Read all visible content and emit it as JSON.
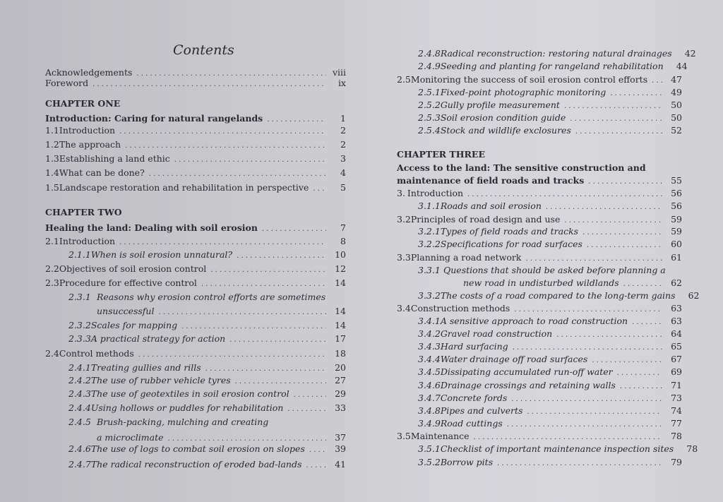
{
  "title": "Contents",
  "left_column": [
    {
      "num": "",
      "title": "Acknowledgements",
      "page": "viii",
      "style": "normal",
      "level": 0
    },
    {
      "num": "",
      "title": "Foreword",
      "page": "ix",
      "style": "normal",
      "level": 0
    },
    {
      "num": "",
      "title": "CHAPTER ONE",
      "page": "",
      "style": "chapter",
      "level": 0
    },
    {
      "num": "",
      "title": "Introduction: Caring for natural rangelands",
      "page": "1",
      "style": "bold",
      "level": 0
    },
    {
      "num": "1.1",
      "title": "Introduction",
      "page": "2",
      "style": "normal",
      "level": 1
    },
    {
      "num": "1.2",
      "title": "The approach",
      "page": "2",
      "style": "normal",
      "level": 1
    },
    {
      "num": "1.3",
      "title": "Establishing a land ethic",
      "page": "3",
      "style": "normal",
      "level": 1
    },
    {
      "num": "1.4",
      "title": "What can be done?",
      "page": "4",
      "style": "normal",
      "level": 1
    },
    {
      "num": "1.5",
      "title": "Landscape restoration and rehabilitation in perspective",
      "page": "5",
      "style": "normal",
      "level": 1
    },
    {
      "num": "",
      "title": "CHAPTER TWO",
      "page": "",
      "style": "chapter",
      "level": 0
    },
    {
      "num": "",
      "title": "Healing the land: Dealing with soil erosion",
      "page": "7",
      "style": "bold",
      "level": 0
    },
    {
      "num": "2.1",
      "title": "Introduction",
      "page": "8",
      "style": "normal",
      "level": 1
    },
    {
      "num": "2.1.1",
      "title": "When is soil erosion unnatural?",
      "page": "10",
      "style": "italic",
      "level": 2
    },
    {
      "num": "2.2",
      "title": "Objectives of soil erosion control",
      "page": "12",
      "style": "normal",
      "level": 1
    },
    {
      "num": "2.3",
      "title": "Procedure for effective control",
      "page": "14",
      "style": "normal",
      "level": 1
    },
    {
      "num": "2.3.1",
      "title": "Reasons why erosion control efforts are sometimes",
      "page": "",
      "style": "italic",
      "level": 2,
      "nodots": true
    },
    {
      "num": "",
      "title": "unsuccessful",
      "page": "14",
      "style": "italic",
      "level": 2
    },
    {
      "num": "2.3.2",
      "title": "Scales for mapping",
      "page": "14",
      "style": "italic",
      "level": 2
    },
    {
      "num": "2.3.3",
      "title": "A practical strategy for action",
      "page": "17",
      "style": "italic",
      "level": 2
    },
    {
      "num": "2.4",
      "title": "Control methods",
      "page": "18",
      "style": "normal",
      "level": 1
    },
    {
      "num": "2.4.1",
      "title": "Treating gullies and rills",
      "page": "20",
      "style": "italic",
      "level": 2
    },
    {
      "num": "2.4.2",
      "title": "The use of rubber vehicle tyres",
      "page": "27",
      "style": "italic",
      "level": 2
    },
    {
      "num": "2.4.3",
      "title": "The use of geotextiles in soil erosion control",
      "page": "29",
      "style": "italic",
      "level": 2
    },
    {
      "num": "2.4.4",
      "title": "Using hollows or puddles for rehabilitation",
      "page": "33",
      "style": "italic",
      "level": 2
    },
    {
      "num": "2.4.5",
      "title": "Brush-packing, mulching and creating",
      "page": "",
      "style": "italic",
      "level": 2,
      "nodots": true
    },
    {
      "num": "",
      "title": "a microclimate",
      "page": "37",
      "style": "italic",
      "level": 2
    },
    {
      "num": "2.4.6",
      "title": "The use of logs to combat soil erosion on slopes",
      "page": "39",
      "style": "italic",
      "level": 2
    },
    {
      "num": "2.4.7",
      "title": "The radical reconstruction of eroded bad-lands",
      "page": "41",
      "style": "italic",
      "level": 2
    }
  ],
  "right_column": [
    {
      "num": "2.4.8",
      "title": "Radical reconstruction: restoring natural drainages",
      "page": "42",
      "style": "italic",
      "level": 2
    },
    {
      "num": "2.4.9",
      "title": "Seeding and planting for rangeland rehabilitation",
      "page": "44",
      "style": "italic",
      "level": 2
    },
    {
      "num": "2.5",
      "title": "Monitoring the success of soil erosion control efforts",
      "page": "47",
      "style": "normal",
      "level": 1
    },
    {
      "num": "2.5.1",
      "title": "Fixed-point photographic monitoring",
      "page": "49",
      "style": "italic",
      "level": 2
    },
    {
      "num": "2.5.2",
      "title": "Gully profile measurement",
      "page": "50",
      "style": "italic",
      "level": 2
    },
    {
      "num": "2.5.3",
      "title": "Soil erosion condition guide",
      "page": "50",
      "style": "italic",
      "level": 2
    },
    {
      "num": "2.5.4",
      "title": "Stock and wildlife exclosures",
      "page": "52",
      "style": "italic",
      "level": 2
    },
    {
      "num": "",
      "title": "CHAPTER THREE",
      "page": "",
      "style": "chapter",
      "level": 0
    },
    {
      "num": "",
      "title": "Access to the land: The sensitive construction and",
      "page": "",
      "style": "bold",
      "level": 0,
      "nodots": true
    },
    {
      "num": "",
      "title": "maintenance of field roads and tracks",
      "page": "55",
      "style": "bold",
      "level": 0
    },
    {
      "num": "3.",
      "title": "Introduction",
      "page": "56",
      "style": "normal",
      "level": 1
    },
    {
      "num": "3.1.1",
      "title": "Roads and soil erosion",
      "page": "56",
      "style": "italic",
      "level": 2
    },
    {
      "num": "3.2",
      "title": "Principles of road design and use",
      "page": "59",
      "style": "normal",
      "level": 1
    },
    {
      "num": "3.2.1",
      "title": "Types of field roads and tracks",
      "page": "59",
      "style": "italic",
      "level": 2
    },
    {
      "num": "3.2.2",
      "title": "Specifications for road surfaces",
      "page": "60",
      "style": "italic",
      "level": 2
    },
    {
      "num": "3.3",
      "title": "Planning a road network",
      "page": "61",
      "style": "normal",
      "level": 1
    },
    {
      "num": "3.3.1",
      "title": "Questions that should be asked before planning a",
      "page": "",
      "style": "italic",
      "level": 2,
      "nodots": true
    },
    {
      "num": "",
      "title": "new road in undisturbed wildlands",
      "page": "62",
      "style": "italic",
      "level": 3
    },
    {
      "num": "3.3.2",
      "title": "The costs of a road compared to the long-term gains",
      "page": "62",
      "style": "italic",
      "level": 2
    },
    {
      "num": "3.4",
      "title": "Construction methods",
      "page": "63",
      "style": "normal",
      "level": 1
    },
    {
      "num": "3.4.1",
      "title": "A sensitive approach to road construction",
      "page": "63",
      "style": "italic",
      "level": 2
    },
    {
      "num": "3.4.2",
      "title": "Gravel road construction",
      "page": "64",
      "style": "italic",
      "level": 2
    },
    {
      "num": "3.4.3",
      "title": "Hard surfacing",
      "page": "65",
      "style": "italic",
      "level": 2
    },
    {
      "num": "3.4.4",
      "title": "Water drainage off road surfaces",
      "page": "67",
      "style": "italic",
      "level": 2
    },
    {
      "num": "3.4.5",
      "title": "Dissipating accumulated run-off water",
      "page": "69",
      "style": "italic",
      "level": 2
    },
    {
      "num": "3.4.6",
      "title": "Drainage crossings and retaining walls",
      "page": "71",
      "style": "italic",
      "level": 2
    },
    {
      "num": "3.4.7",
      "title": "Concrete fords",
      "page": "73",
      "style": "italic",
      "level": 2
    },
    {
      "num": "3.4.8",
      "title": "Pipes and culverts",
      "page": "74",
      "style": "italic",
      "level": 2
    },
    {
      "num": "3.4.9",
      "title": "Road cuttings",
      "page": "77",
      "style": "italic",
      "level": 2
    },
    {
      "num": "3.5",
      "title": "Maintenance",
      "page": "78",
      "style": "normal",
      "level": 1
    },
    {
      "num": "3.5.1",
      "title": "Checklist of important maintenance inspection sites",
      "page": "78",
      "style": "italic",
      "level": 2
    },
    {
      "num": "3.5.2",
      "title": "Borrow pits",
      "page": "79",
      "style": "italic",
      "level": 2
    }
  ]
}
